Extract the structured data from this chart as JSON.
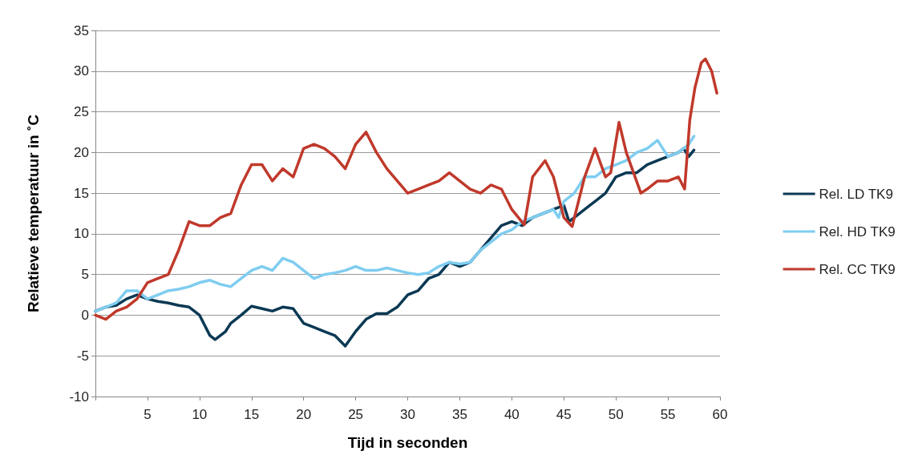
{
  "chart_data": {
    "type": "line",
    "xlabel": "Tijd in seconden",
    "ylabel": "Relatieve temperatuur in ˚C",
    "xlim": [
      0,
      60
    ],
    "xticks": [
      {
        "value": 0,
        "label": null
      },
      5,
      10,
      15,
      20,
      25,
      30,
      35,
      40,
      45,
      50,
      55,
      60
    ],
    "ylim": [
      -10,
      35
    ],
    "yticks": [
      -10,
      -5,
      0,
      5,
      10,
      15,
      20,
      25,
      30,
      35
    ],
    "grid": "y",
    "legend": "right",
    "marker": "none",
    "line_style": "solid",
    "series": [
      {
        "name": "Rel. LD TK9",
        "color": "#0b3954",
        "x": [
          0,
          1,
          2,
          3,
          4,
          5,
          6,
          7,
          8,
          9,
          10,
          11,
          11.5,
          12.5,
          13,
          14,
          15,
          16,
          17,
          18,
          19,
          20,
          21,
          22,
          23,
          24,
          25,
          26,
          27,
          28,
          29,
          30,
          31,
          32,
          33,
          34,
          35,
          36,
          37,
          38,
          39,
          40,
          41,
          42,
          43,
          44,
          45,
          45.5,
          46,
          47,
          48,
          49,
          50,
          51,
          52,
          53,
          54,
          55,
          56,
          56.5,
          57,
          57.5
        ],
        "values": [
          0.5,
          1,
          1.2,
          2,
          2.5,
          2,
          1.7,
          1.5,
          1.2,
          1,
          0,
          -2.5,
          -3,
          -2,
          -1,
          0,
          1.1,
          0.8,
          0.5,
          1,
          0.8,
          -1,
          -1.5,
          -2,
          -2.5,
          -3.8,
          -2,
          -0.5,
          0.2,
          0.2,
          1,
          2.5,
          3,
          4.5,
          5,
          6.5,
          6,
          6.5,
          8,
          9.5,
          11,
          11.5,
          11,
          12,
          12.5,
          13,
          13.5,
          11.5,
          12,
          13,
          14,
          15,
          17,
          17.5,
          17.5,
          18.5,
          19,
          19.5,
          20,
          20.5,
          19.5,
          20.3
        ]
      },
      {
        "name": "Rel. HD TK9",
        "color": "#7fcdf0",
        "x": [
          0,
          1,
          2,
          3,
          4,
          5,
          6,
          7,
          8,
          9,
          10,
          11,
          12,
          13,
          14,
          15,
          16,
          17,
          18,
          19,
          20,
          21,
          22,
          23,
          24,
          25,
          26,
          27,
          28,
          29,
          30,
          31,
          32,
          33,
          34,
          35,
          36,
          37,
          38,
          39,
          40,
          41,
          42,
          43,
          44,
          44.5,
          45,
          46,
          47,
          48,
          49,
          50,
          51,
          52,
          53,
          54,
          55,
          56,
          57,
          57.5
        ],
        "values": [
          0.5,
          1,
          1.5,
          3,
          3,
          2,
          2.5,
          3,
          3.2,
          3.5,
          4,
          4.3,
          3.8,
          3.5,
          4.5,
          5.5,
          6,
          5.5,
          7,
          6.5,
          5.5,
          4.5,
          5,
          5.2,
          5.5,
          6,
          5.5,
          5.5,
          5.8,
          5.5,
          5.2,
          5,
          5.2,
          6,
          6.5,
          6.3,
          6.5,
          8,
          9,
          10,
          10.5,
          11.5,
          12,
          12.5,
          13,
          12,
          14,
          15,
          17,
          17,
          18,
          18.5,
          19,
          20,
          20.5,
          21.5,
          19.5,
          20,
          21,
          22
        ]
      },
      {
        "name": "Rel. CC TK9",
        "color": "#c0392b",
        "x": [
          0,
          1,
          2,
          3,
          4,
          5,
          6,
          7,
          8,
          9,
          10,
          11,
          12,
          13,
          14,
          15,
          16,
          17,
          18,
          19,
          20,
          21,
          22,
          23,
          24,
          25,
          26,
          27,
          28,
          29,
          30,
          31,
          32,
          33,
          34,
          35,
          36,
          37,
          38,
          39,
          40,
          41.2,
          42,
          43.2,
          44,
          45,
          45.8,
          47,
          48,
          49,
          49.5,
          50.3,
          51,
          52.4,
          53,
          54,
          55,
          56,
          56.6,
          57.1,
          57.6,
          58.2,
          58.6,
          59.2,
          59.7
        ],
        "values": [
          0,
          -0.5,
          0.5,
          1,
          2,
          4,
          4.5,
          5,
          8,
          11.5,
          11,
          11,
          12,
          12.5,
          16,
          18.5,
          18.5,
          16.5,
          18,
          17,
          20.5,
          21,
          20.5,
          19.5,
          18,
          21,
          22.5,
          20,
          18,
          16.5,
          15,
          15.5,
          16,
          16.5,
          17.5,
          16.5,
          15.5,
          15,
          16,
          15.5,
          13,
          11.1,
          17,
          19,
          17,
          12,
          10.9,
          17,
          20.5,
          17,
          17.5,
          23.7,
          20,
          15,
          15.5,
          16.5,
          16.5,
          17,
          15.5,
          24,
          28,
          31,
          31.5,
          30,
          27.3
        ]
      }
    ]
  }
}
